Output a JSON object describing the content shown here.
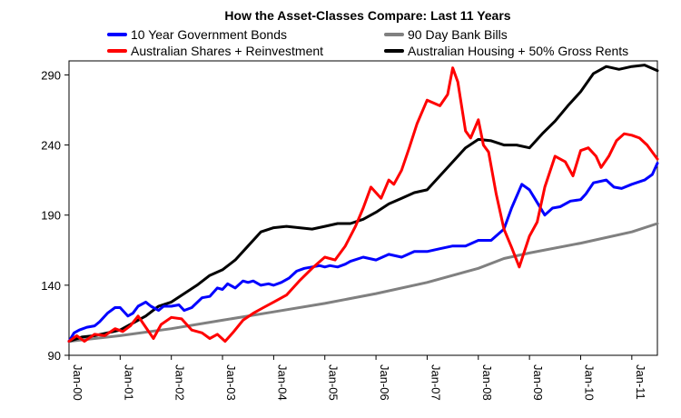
{
  "chart_data": {
    "type": "line",
    "title": "How the Asset-Classes Compare: Last 11 Years",
    "xlabel": "",
    "ylabel": "",
    "ylim": [
      90,
      300
    ],
    "yticks": [
      90,
      140,
      190,
      240,
      290
    ],
    "x_ticks": [
      "Jan-00",
      "Jan-01",
      "Jan-02",
      "Jan-03",
      "Jan-04",
      "Jan-05",
      "Jan-06",
      "Jan-07",
      "Jan-08",
      "Jan-09",
      "Jan-10",
      "Jan-11"
    ],
    "x_range_years": [
      2000.0,
      2011.5
    ],
    "grid": false,
    "legend_position": "top",
    "series": [
      {
        "name": "10 Year Government Bonds",
        "color": "#0000ff",
        "x": [
          2000.0,
          2000.1,
          2000.2,
          2000.35,
          2000.5,
          2000.6,
          2000.75,
          2000.9,
          2001.0,
          2001.15,
          2001.25,
          2001.35,
          2001.5,
          2001.6,
          2001.75,
          2001.85,
          2002.0,
          2002.15,
          2002.25,
          2002.4,
          2002.6,
          2002.75,
          2002.9,
          2003.0,
          2003.1,
          2003.25,
          2003.4,
          2003.5,
          2003.6,
          2003.75,
          2003.9,
          2004.0,
          2004.15,
          2004.3,
          2004.45,
          2004.6,
          2004.75,
          2004.9,
          2005.0,
          2005.1,
          2005.25,
          2005.4,
          2005.5,
          2005.75,
          2006.0,
          2006.25,
          2006.5,
          2006.75,
          2007.0,
          2007.25,
          2007.5,
          2007.75,
          2008.0,
          2008.25,
          2008.5,
          2008.65,
          2008.85,
          2009.0,
          2009.1,
          2009.3,
          2009.45,
          2009.6,
          2009.8,
          2010.0,
          2010.1,
          2010.25,
          2010.5,
          2010.65,
          2010.8,
          2011.0,
          2011.25,
          2011.4,
          2011.5
        ],
        "values": [
          100,
          106,
          108,
          110,
          111,
          114,
          120,
          124,
          124,
          118,
          120,
          125,
          128,
          125,
          122,
          125,
          125,
          126,
          122,
          124,
          131,
          132,
          138,
          137,
          141,
          138,
          143,
          142,
          143,
          140,
          141,
          140,
          142,
          145,
          150,
          152,
          153,
          154,
          153,
          154,
          153,
          155,
          157,
          160,
          158,
          162,
          160,
          164,
          164,
          166,
          168,
          168,
          172,
          172,
          180,
          195,
          212,
          208,
          202,
          190,
          195,
          196,
          200,
          201,
          205,
          213,
          215,
          210,
          209,
          212,
          215,
          219,
          227
        ]
      },
      {
        "name": "90 Day Bank Bills",
        "color": "#808080",
        "x": [
          2000.0,
          2001.0,
          2002.0,
          2003.0,
          2004.0,
          2005.0,
          2006.0,
          2007.0,
          2008.0,
          2008.5,
          2009.0,
          2010.0,
          2011.0,
          2011.5
        ],
        "values": [
          100,
          104,
          109,
          115,
          121,
          127,
          134,
          142,
          152,
          159,
          163,
          170,
          178,
          184
        ]
      },
      {
        "name": "Australian Shares + Reinvestment",
        "color": "#ff0000",
        "x": [
          2000.0,
          2000.15,
          2000.3,
          2000.5,
          2000.7,
          2000.9,
          2001.05,
          2001.2,
          2001.35,
          2001.5,
          2001.65,
          2001.8,
          2002.0,
          2002.2,
          2002.4,
          2002.6,
          2002.75,
          2002.9,
          2003.05,
          2003.2,
          2003.4,
          2003.6,
          2003.8,
          2004.0,
          2004.25,
          2004.5,
          2004.75,
          2005.0,
          2005.2,
          2005.4,
          2005.6,
          2005.75,
          2005.9,
          2006.1,
          2006.25,
          2006.35,
          2006.5,
          2006.65,
          2006.8,
          2007.0,
          2007.25,
          2007.4,
          2007.5,
          2007.6,
          2007.75,
          2007.85,
          2008.0,
          2008.1,
          2008.2,
          2008.35,
          2008.5,
          2008.65,
          2008.8,
          2009.0,
          2009.15,
          2009.3,
          2009.5,
          2009.7,
          2009.85,
          2010.0,
          2010.15,
          2010.3,
          2010.4,
          2010.55,
          2010.7,
          2010.85,
          2011.0,
          2011.15,
          2011.3,
          2011.5
        ],
        "values": [
          100,
          104,
          100,
          105,
          104,
          109,
          107,
          111,
          118,
          110,
          102,
          112,
          117,
          116,
          108,
          106,
          102,
          105,
          100,
          106,
          115,
          120,
          124,
          128,
          133,
          143,
          152,
          160,
          158,
          168,
          182,
          195,
          210,
          202,
          215,
          212,
          222,
          238,
          255,
          272,
          268,
          276,
          295,
          285,
          250,
          245,
          258,
          240,
          235,
          205,
          180,
          167,
          153,
          175,
          185,
          210,
          232,
          228,
          218,
          236,
          238,
          232,
          224,
          232,
          243,
          248,
          247,
          245,
          240,
          230
        ]
      },
      {
        "name": "Australian Housing + 50% Gross Rents",
        "color": "#000000",
        "x": [
          2000.0,
          2000.25,
          2000.5,
          2000.75,
          2001.0,
          2001.25,
          2001.5,
          2001.75,
          2002.0,
          2002.25,
          2002.5,
          2002.75,
          2003.0,
          2003.25,
          2003.5,
          2003.75,
          2004.0,
          2004.25,
          2004.5,
          2004.75,
          2005.0,
          2005.25,
          2005.5,
          2005.75,
          2006.0,
          2006.25,
          2006.5,
          2006.75,
          2007.0,
          2007.25,
          2007.5,
          2007.75,
          2008.0,
          2008.25,
          2008.5,
          2008.75,
          2009.0,
          2009.25,
          2009.5,
          2009.75,
          2010.0,
          2010.25,
          2010.5,
          2010.75,
          2011.0,
          2011.25,
          2011.5
        ],
        "values": [
          100,
          103,
          104,
          106,
          108,
          113,
          118,
          125,
          128,
          134,
          140,
          147,
          151,
          158,
          168,
          178,
          181,
          182,
          181,
          180,
          182,
          184,
          184,
          187,
          192,
          198,
          202,
          206,
          208,
          218,
          228,
          238,
          244,
          243,
          240,
          240,
          238,
          248,
          257,
          268,
          278,
          291,
          296,
          294,
          296,
          297,
          293
        ]
      }
    ]
  }
}
